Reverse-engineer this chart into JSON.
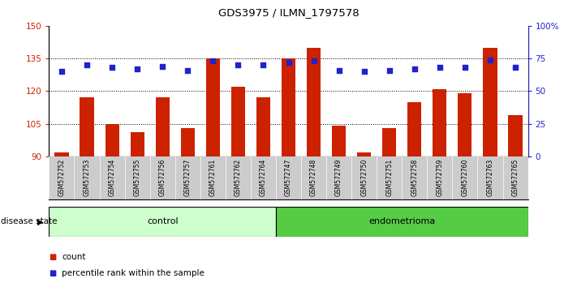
{
  "title": "GDS3975 / ILMN_1797578",
  "samples": [
    "GSM572752",
    "GSM572753",
    "GSM572754",
    "GSM572755",
    "GSM572756",
    "GSM572757",
    "GSM572761",
    "GSM572762",
    "GSM572764",
    "GSM572747",
    "GSM572748",
    "GSM572749",
    "GSM572750",
    "GSM572751",
    "GSM572758",
    "GSM572759",
    "GSM572760",
    "GSM572763",
    "GSM572765"
  ],
  "counts": [
    92,
    117,
    105,
    101,
    117,
    103,
    135,
    122,
    117,
    135,
    140,
    104,
    92,
    103,
    115,
    121,
    119,
    140,
    109
  ],
  "percentile_ranks": [
    65,
    70,
    68,
    67,
    69,
    66,
    73,
    70,
    70,
    72,
    73,
    66,
    65,
    66,
    67,
    68,
    68,
    74,
    68
  ],
  "n_control": 9,
  "n_endometrioma": 10,
  "bar_color": "#cc2200",
  "dot_color": "#2222cc",
  "ylim_left": [
    90,
    150
  ],
  "ylim_right": [
    0,
    100
  ],
  "yticks_left": [
    90,
    105,
    120,
    135,
    150
  ],
  "yticks_right": [
    0,
    25,
    50,
    75,
    100
  ],
  "ytick_labels_right": [
    "0",
    "25",
    "50",
    "75",
    "100%"
  ],
  "hgrid_vals": [
    105,
    120,
    135
  ],
  "control_label": "control",
  "endo_label": "endometrioma",
  "disease_state_label": "disease state",
  "legend_count_label": "count",
  "legend_pct_label": "percentile rank within the sample",
  "control_color": "#ccffcc",
  "endo_color": "#55cc44",
  "xtick_bg": "#cccccc",
  "bg_color": "#ffffff"
}
